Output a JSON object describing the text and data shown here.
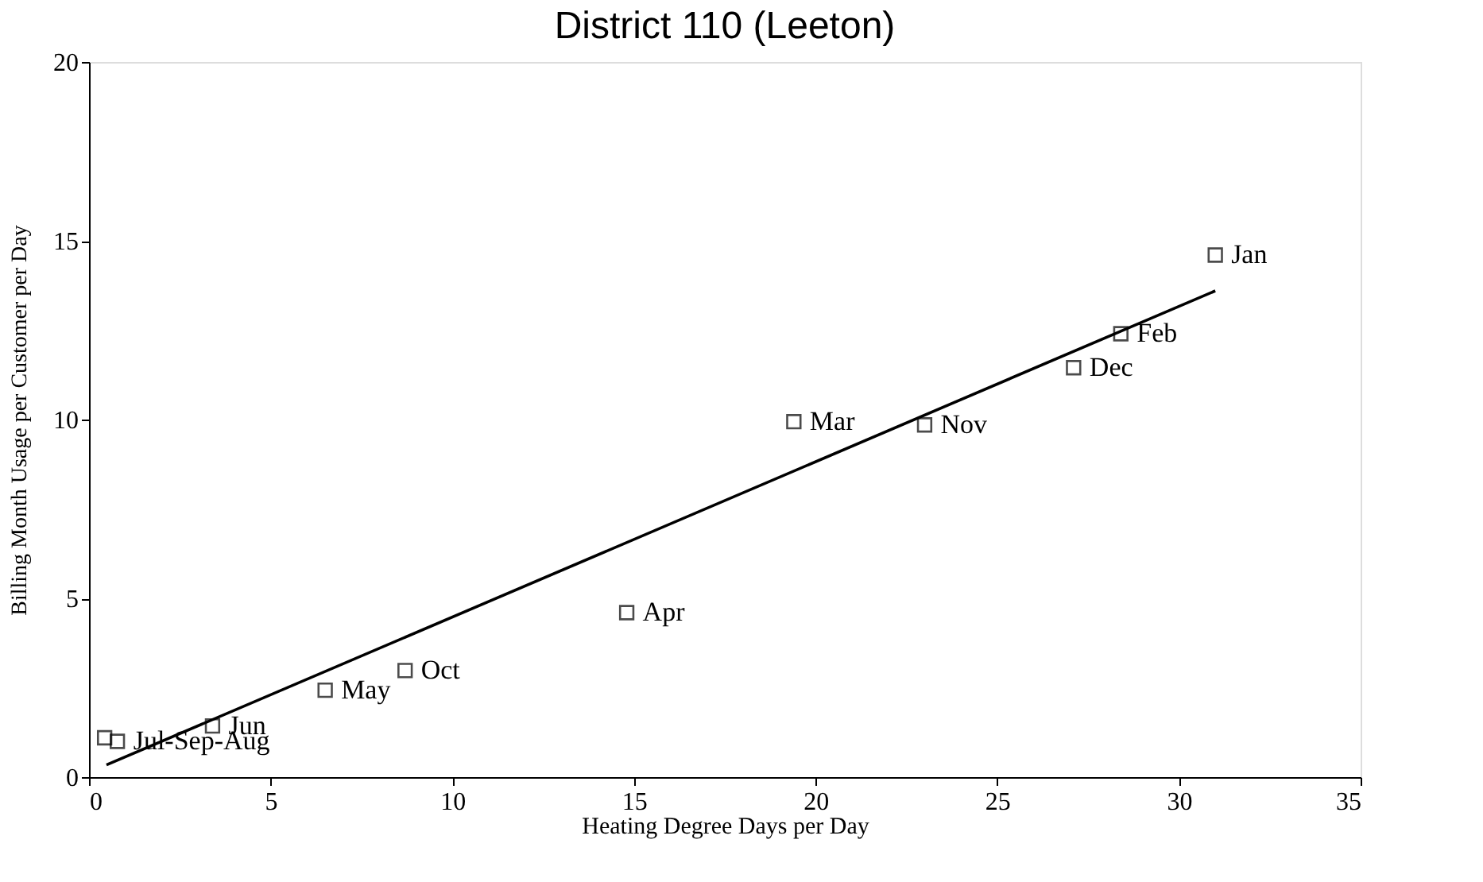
{
  "chart_data": {
    "type": "scatter",
    "title": "District 110 (Leeton)",
    "xlabel": "Heating Degree Days per Day",
    "ylabel": "Billing Month Usage per Customer per Day",
    "xlim": [
      0,
      35
    ],
    "ylim": [
      0,
      20
    ],
    "xticks": [
      0,
      5,
      10,
      15,
      20,
      25,
      30,
      35
    ],
    "yticks": [
      0,
      5,
      10,
      15,
      20
    ],
    "grid": false,
    "marker": "square",
    "series": [
      {
        "color": "#000000",
        "x": [
          0.43,
          0.78,
          3.4,
          6.5,
          8.7,
          14.8,
          19.4,
          23.0,
          27.1,
          28.4,
          31.0
        ],
        "values": [
          1.1,
          1.0,
          1.43,
          2.43,
          2.98,
          4.6,
          9.94,
          9.85,
          11.45,
          12.4,
          14.6
        ]
      },
      {
        "type": "line",
        "marker": "none",
        "line_style": "solid",
        "color": "#000000",
        "x": [
          0.48,
          31.0
        ],
        "values": [
          0.34,
          13.6
        ]
      }
    ],
    "annotations": [
      {
        "text": "Jul-Sep-Aug",
        "x": 0.78,
        "y": 1.0
      },
      {
        "text": "Jun",
        "x": 3.4,
        "y": 1.43
      },
      {
        "text": "May",
        "x": 6.5,
        "y": 2.43
      },
      {
        "text": "Oct",
        "x": 8.7,
        "y": 2.98
      },
      {
        "text": "Apr",
        "x": 14.8,
        "y": 4.6
      },
      {
        "text": "Mar",
        "x": 19.4,
        "y": 9.94
      },
      {
        "text": "Nov",
        "x": 23.0,
        "y": 9.85
      },
      {
        "text": "Dec",
        "x": 27.1,
        "y": 11.45
      },
      {
        "text": "Feb",
        "x": 28.4,
        "y": 12.4
      },
      {
        "text": "Jan",
        "x": 31.0,
        "y": 14.6
      }
    ]
  }
}
